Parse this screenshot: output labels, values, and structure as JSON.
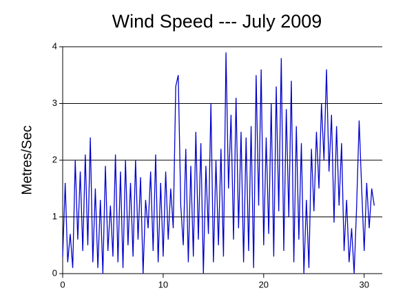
{
  "chart_data": {
    "type": "line",
    "title": "Wind Speed --- July 2009",
    "y_label": "Metres/Sec",
    "x": [
      0,
      0.25,
      0.5,
      0.75,
      1,
      1.25,
      1.5,
      1.75,
      2,
      2.25,
      2.5,
      2.75,
      3,
      3.25,
      3.5,
      3.75,
      4,
      4.25,
      4.5,
      4.75,
      5,
      5.25,
      5.5,
      5.75,
      6,
      6.25,
      6.5,
      6.75,
      7,
      7.25,
      7.5,
      7.75,
      8,
      8.25,
      8.5,
      8.75,
      9,
      9.25,
      9.5,
      9.75,
      10,
      10.25,
      10.5,
      10.75,
      11,
      11.25,
      11.5,
      11.75,
      12,
      12.25,
      12.5,
      12.75,
      13,
      13.25,
      13.5,
      13.75,
      14,
      14.25,
      14.5,
      14.75,
      15,
      15.25,
      15.5,
      15.75,
      16,
      16.25,
      16.5,
      16.75,
      17,
      17.25,
      17.5,
      17.75,
      18,
      18.25,
      18.5,
      18.75,
      19,
      19.25,
      19.5,
      19.75,
      20,
      20.25,
      20.5,
      20.75,
      21,
      21.25,
      21.5,
      21.75,
      22,
      22.25,
      22.5,
      22.75,
      23,
      23.25,
      23.5,
      23.75,
      24,
      24.25,
      24.5,
      24.75,
      25,
      25.25,
      25.5,
      25.75,
      26,
      26.25,
      26.5,
      26.75,
      27,
      27.25,
      27.5,
      27.75,
      28,
      28.25,
      28.5,
      28.75,
      29,
      29.25,
      29.5,
      29.75,
      30,
      30.25,
      30.5,
      30.75,
      31
    ],
    "series": [
      {
        "color": "#0000cc",
        "values": [
          0.3,
          1.6,
          0.2,
          0.7,
          0.1,
          2.0,
          0.6,
          1.8,
          0.4,
          2.1,
          0.5,
          2.4,
          0.2,
          1.5,
          0.1,
          1.3,
          0.0,
          1.9,
          0.4,
          1.2,
          0.3,
          2.1,
          0.2,
          1.8,
          0.1,
          2.0,
          0.5,
          1.6,
          0.3,
          2.0,
          0.6,
          1.7,
          0.0,
          1.3,
          0.8,
          1.8,
          0.4,
          2.1,
          0.2,
          1.6,
          0.3,
          1.8,
          0.6,
          1.5,
          0.8,
          3.3,
          3.5,
          1.2,
          0.5,
          2.2,
          0.2,
          1.9,
          0.3,
          2.5,
          0.6,
          2.3,
          0.0,
          1.9,
          0.7,
          3.0,
          0.2,
          2.0,
          0.5,
          2.2,
          0.3,
          3.9,
          1.5,
          2.8,
          0.6,
          3.1,
          0.8,
          2.5,
          0.2,
          2.4,
          0.4,
          2.6,
          0.1,
          3.5,
          1.2,
          3.6,
          0.5,
          2.4,
          0.7,
          3.0,
          0.3,
          3.3,
          1.1,
          3.8,
          0.4,
          2.9,
          1.0,
          3.4,
          0.2,
          2.6,
          0.6,
          2.3,
          0.0,
          1.3,
          0.1,
          2.2,
          1.1,
          2.5,
          1.5,
          3.0,
          2.0,
          3.6,
          1.8,
          2.8,
          0.9,
          2.6,
          1.2,
          2.3,
          0.4,
          1.3,
          0.2,
          0.8,
          0.0,
          1.2,
          2.7,
          1.5,
          0.4,
          1.6,
          0.8,
          1.5,
          1.2
        ]
      }
    ],
    "xlim": [
      0,
      31.8
    ],
    "xticks": [
      0,
      10,
      20,
      30
    ],
    "ylim": [
      0,
      4
    ],
    "yticks": [
      0,
      1,
      2,
      3,
      4
    ],
    "grid": true
  }
}
